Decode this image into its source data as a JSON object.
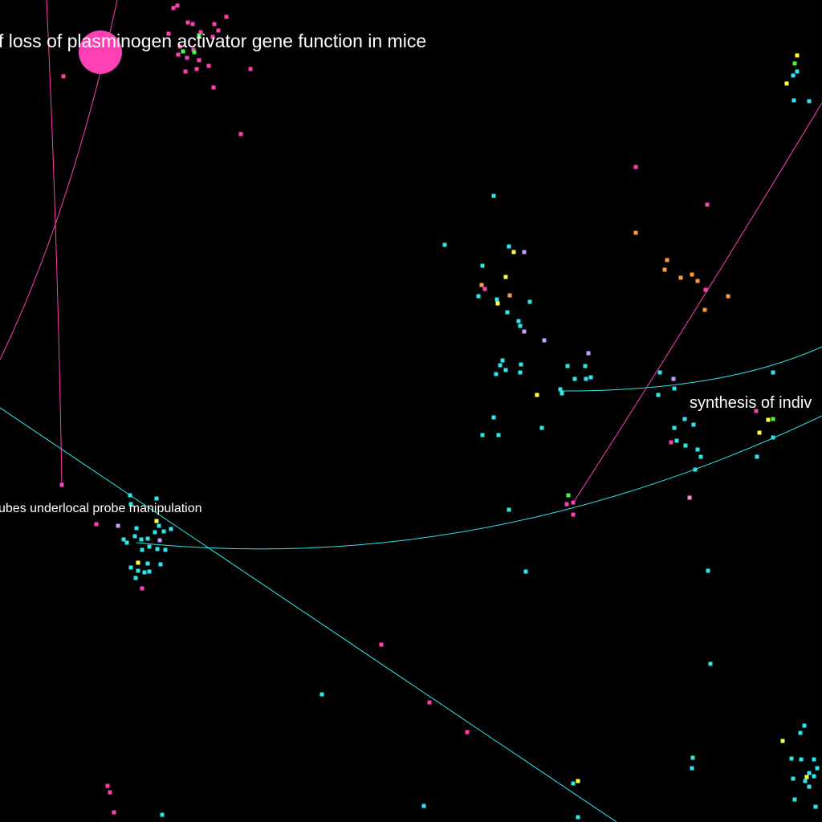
{
  "labels": {
    "top": "f loss of plasminogen activator gene function in mice",
    "right": "synthesis of indiv",
    "left": "ubes underlocal probe manipulation"
  },
  "colors": {
    "magenta": "#ff3fb4",
    "cyan": "#2fe6ec",
    "green": "#3cff3c",
    "yellow": "#ffff3c",
    "orange": "#ff9a3c",
    "lavender": "#c8a0ff",
    "pink": "#ff8ccf",
    "white": "#ffffff"
  }
}
